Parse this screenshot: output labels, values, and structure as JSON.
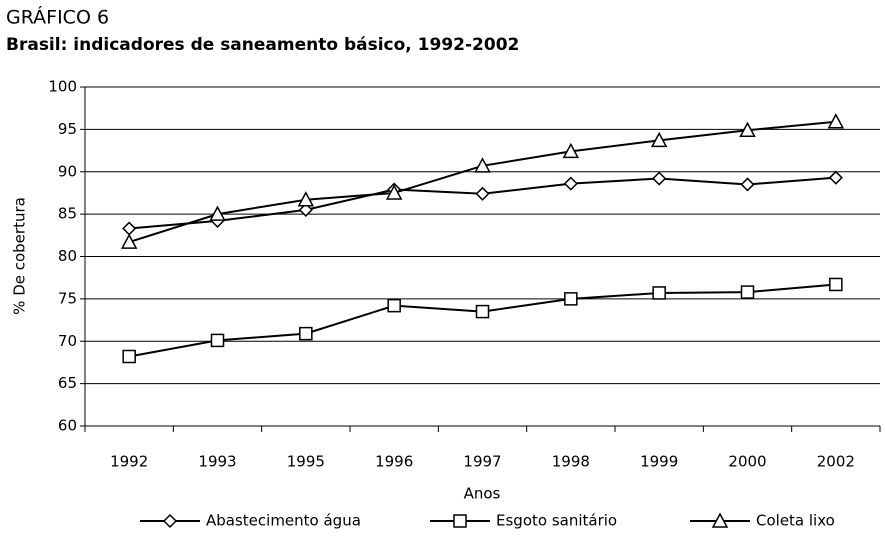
{
  "chart_data": {
    "type": "line",
    "title": "GRÁFICO 6",
    "subtitle": "Brasil: indicadores de saneamento básico, 1992-2002",
    "x_label": "Anos",
    "y_label": "% De cobertura",
    "categories": [
      "1992",
      "1993",
      "1995",
      "1996",
      "1997",
      "1998",
      "1999",
      "2000",
      "2002"
    ],
    "series": [
      {
        "name": "Abastecimento água",
        "color": "#000000",
        "marker": "diamond",
        "values": [
          83.3,
          84.2,
          85.5,
          87.9,
          87.4,
          88.6,
          89.2,
          88.5,
          89.3
        ]
      },
      {
        "name": "Esgoto sanitário",
        "color": "#000000",
        "marker": "square",
        "values": [
          68.2,
          70.1,
          70.9,
          74.2,
          73.5,
          75.0,
          75.7,
          75.8,
          76.7
        ]
      },
      {
        "name": "Coleta lixo",
        "color": "#000000",
        "marker": "triangle",
        "values": [
          81.7,
          85.0,
          86.7,
          87.5,
          90.7,
          92.4,
          93.7,
          94.9,
          95.9
        ]
      }
    ],
    "ylim": [
      60,
      100
    ],
    "yticks": [
      60,
      65,
      70,
      75,
      80,
      85,
      90,
      95,
      100
    ],
    "grid": true,
    "legend": "bottom"
  }
}
